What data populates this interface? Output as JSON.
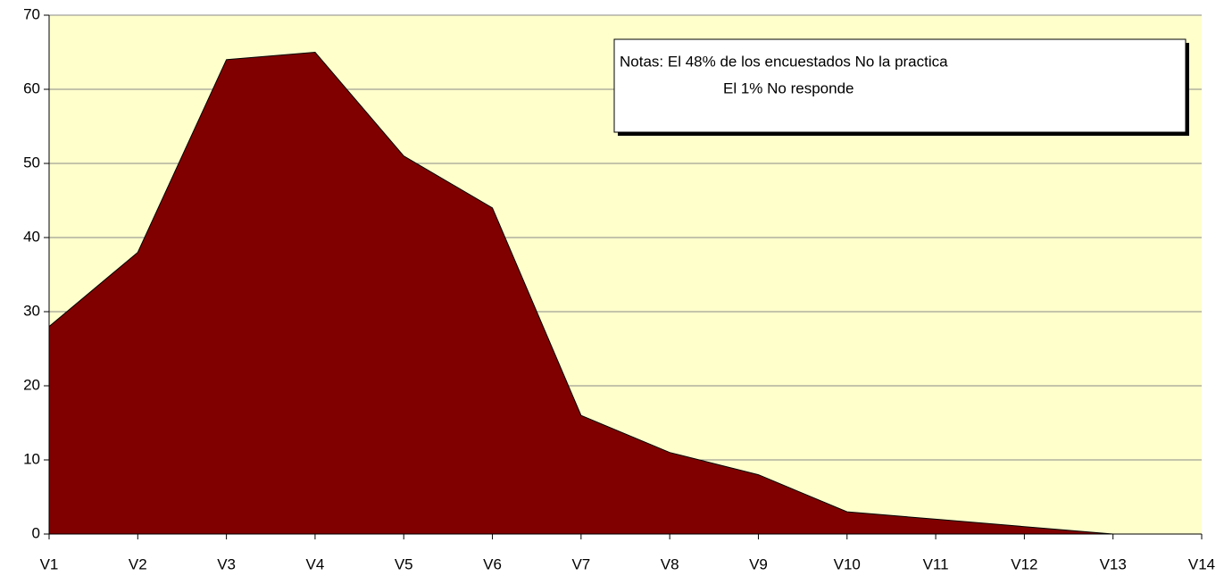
{
  "chart_data": {
    "type": "area",
    "categories": [
      "V1",
      "V2",
      "V3",
      "V4",
      "V5",
      "V6",
      "V7",
      "V8",
      "V9",
      "V10",
      "V11",
      "V12",
      "V13",
      "V14"
    ],
    "values": [
      28,
      38,
      64,
      65,
      51,
      44,
      16,
      11,
      8,
      3,
      2,
      1,
      0,
      0
    ],
    "color": "#800000",
    "plot_background": "#ffffcc",
    "ylim": [
      0,
      70
    ],
    "yticks": [
      0,
      10,
      20,
      30,
      40,
      50,
      60,
      70
    ],
    "grid": true,
    "annotations": [
      "Notas: El 48% de los encuestados No la practica",
      "El 1% No responde"
    ]
  }
}
